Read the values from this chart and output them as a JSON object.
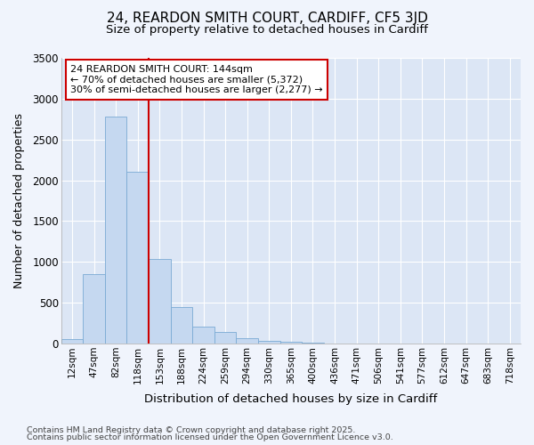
{
  "title1": "24, REARDON SMITH COURT, CARDIFF, CF5 3JD",
  "title2": "Size of property relative to detached houses in Cardiff",
  "xlabel": "Distribution of detached houses by size in Cardiff",
  "ylabel": "Number of detached properties",
  "bar_labels": [
    "12sqm",
    "47sqm",
    "82sqm",
    "118sqm",
    "153sqm",
    "188sqm",
    "224sqm",
    "259sqm",
    "294sqm",
    "330sqm",
    "365sqm",
    "400sqm",
    "436sqm",
    "471sqm",
    "506sqm",
    "541sqm",
    "577sqm",
    "612sqm",
    "647sqm",
    "683sqm",
    "718sqm"
  ],
  "bar_values": [
    55,
    850,
    2780,
    2100,
    1040,
    450,
    210,
    145,
    60,
    30,
    18,
    10,
    5,
    2,
    1,
    1,
    0,
    0,
    0,
    0,
    0
  ],
  "bar_color": "#c5d8f0",
  "bar_edgecolor": "#7aaad4",
  "vline_x": 3.5,
  "vline_color": "#cc0000",
  "annotation_text": "24 REARDON SMITH COURT: 144sqm\n← 70% of detached houses are smaller (5,372)\n30% of semi-detached houses are larger (2,277) →",
  "annotation_box_facecolor": "#ffffff",
  "annotation_box_edgecolor": "#cc0000",
  "ylim": [
    0,
    3500
  ],
  "yticks": [
    0,
    500,
    1000,
    1500,
    2000,
    2500,
    3000,
    3500
  ],
  "fig_bg": "#f0f4fc",
  "plot_bg": "#dce6f5",
  "grid_color": "#ffffff",
  "footer1": "Contains HM Land Registry data © Crown copyright and database right 2025.",
  "footer2": "Contains public sector information licensed under the Open Government Licence v3.0."
}
